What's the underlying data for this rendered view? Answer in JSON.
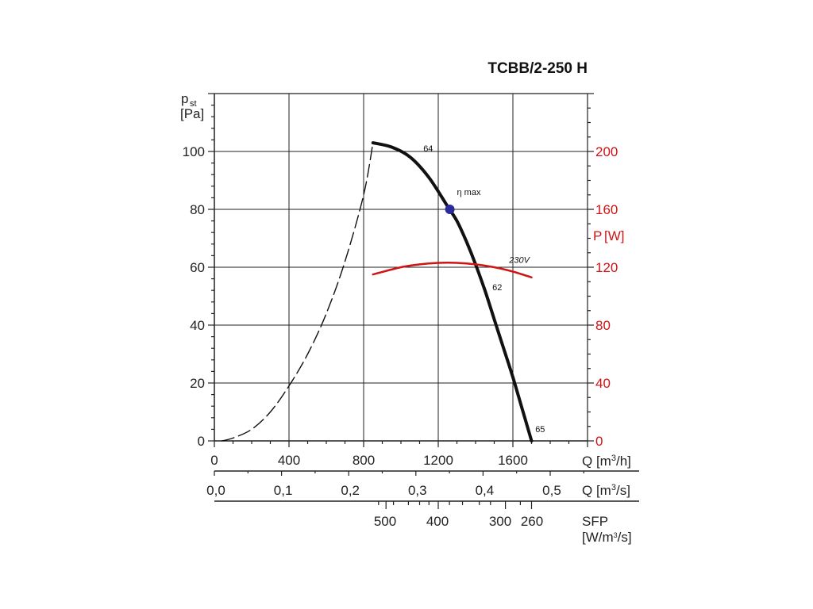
{
  "chart_data": {
    "type": "line",
    "title": "TCBB/2-250 H",
    "y_left": {
      "label": "p",
      "label_sub": "st",
      "unit": "[Pa]",
      "range": [
        0,
        120
      ],
      "ticks": [
        0,
        20,
        40,
        60,
        80,
        100
      ]
    },
    "y_right": {
      "label": "P",
      "unit": "[W]",
      "range": [
        0,
        240
      ],
      "ticks": [
        0,
        40,
        80,
        120,
        160,
        200
      ],
      "color": "#d01414"
    },
    "x_primary": {
      "label": "Q [m",
      "label_sup": "3",
      "label_end": "/h]",
      "range": [
        0,
        2000
      ],
      "ticks": [
        0,
        400,
        800,
        1200,
        1600
      ],
      "tick_labels": [
        "0",
        "400",
        "800",
        "1200",
        "1600"
      ]
    },
    "x_secondary": {
      "label": "Q [m",
      "label_sup": "3",
      "label_end": "/s]",
      "ticks": [
        0.0,
        0.1,
        0.2,
        0.3,
        0.4,
        0.5
      ],
      "tick_labels": [
        "0,0",
        "0,1",
        "0,2",
        "0,3",
        "0,4",
        "0,5"
      ]
    },
    "sfp_axis": {
      "label": "SFP",
      "unit": "[W/m",
      "unit_sup": "3",
      "unit_end": "/s]",
      "ticks": [
        500,
        400,
        300,
        260
      ],
      "tick_labels": [
        "500",
        "400",
        "300",
        "260"
      ],
      "tick_q_m3h": [
        920,
        1200,
        1560,
        1700
      ]
    },
    "grid": true,
    "series": [
      {
        "kind": "unstable",
        "style": "dashed",
        "color": "#111111",
        "x": [
          40,
          100,
          200,
          300,
          400,
          500,
          600,
          700,
          800,
          850
        ],
        "y": [
          0,
          1,
          4,
          10,
          19,
          30,
          44,
          62,
          85,
          103
        ]
      },
      {
        "kind": "pressure",
        "style": "solid",
        "color": "#111111",
        "x": [
          850,
          950,
          1050,
          1150,
          1250,
          1300,
          1350,
          1400,
          1450,
          1500,
          1550,
          1600,
          1650,
          1700
        ],
        "y": [
          103,
          101.5,
          98,
          91,
          81,
          76,
          69,
          61,
          52,
          42,
          32,
          22,
          11,
          0
        ]
      },
      {
        "name": "230V",
        "kind": "power",
        "style": "solid",
        "color": "#d01414",
        "x": [
          850,
          1000,
          1100,
          1200,
          1300,
          1400,
          1500,
          1600,
          1700
        ],
        "y": [
          115,
          120,
          122,
          123,
          123,
          122,
          120,
          117,
          113
        ]
      }
    ],
    "annotations": [
      {
        "text": "64",
        "x": 1120,
        "y": 100
      },
      {
        "text": "62",
        "x": 1490,
        "y": 52
      },
      {
        "text": "65",
        "x": 1720,
        "y": 3
      },
      {
        "text": "230V",
        "x": 1580,
        "y": 123,
        "color": "#d01414",
        "italic": true
      },
      {
        "text": "η max",
        "x": 1300,
        "y": 85,
        "color": "#2a2a7a"
      }
    ],
    "marker": {
      "name": "η max",
      "x": 1262,
      "y": 80,
      "color": "#2b2b99"
    }
  }
}
